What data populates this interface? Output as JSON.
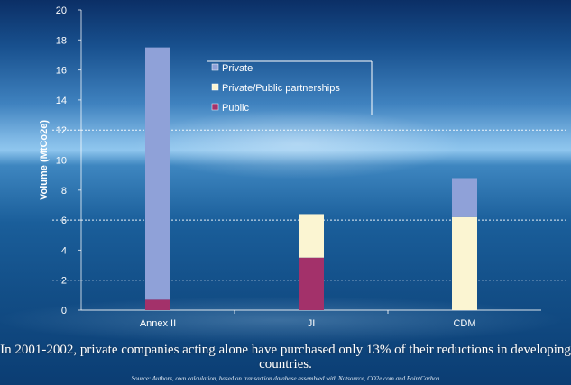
{
  "chart_data": {
    "type": "bar",
    "stacked": true,
    "ylabel": "Volume (MtCo2e)",
    "ylim": [
      0,
      20
    ],
    "yticks": [
      0,
      2,
      4,
      6,
      8,
      10,
      12,
      14,
      16,
      18,
      20
    ],
    "dashed_gridlines": [
      2,
      6,
      12
    ],
    "categories": [
      "Annex II",
      "JI",
      "CDM"
    ],
    "series": [
      {
        "name": "Public",
        "color": "#a3316a",
        "values": [
          0.7,
          3.5,
          0
        ]
      },
      {
        "name": "Private/Public partnerships",
        "color": "#fbf5d2",
        "values": [
          0,
          2.9,
          6.2
        ]
      },
      {
        "name": "Private",
        "color": "#8fa1d8",
        "values": [
          16.8,
          0,
          2.6
        ]
      }
    ],
    "legend": {
      "placement": "top-center",
      "order": [
        "Private",
        "Private/Public partnerships",
        "Public"
      ]
    }
  },
  "caption": "In 2001-2002, private companies acting alone have purchased only 13% of their reductions in developing countries.",
  "source_note": "Source: Authors, own calculation, based on transaction database assembled with Natsource, CO2e.com and PointCarbon"
}
